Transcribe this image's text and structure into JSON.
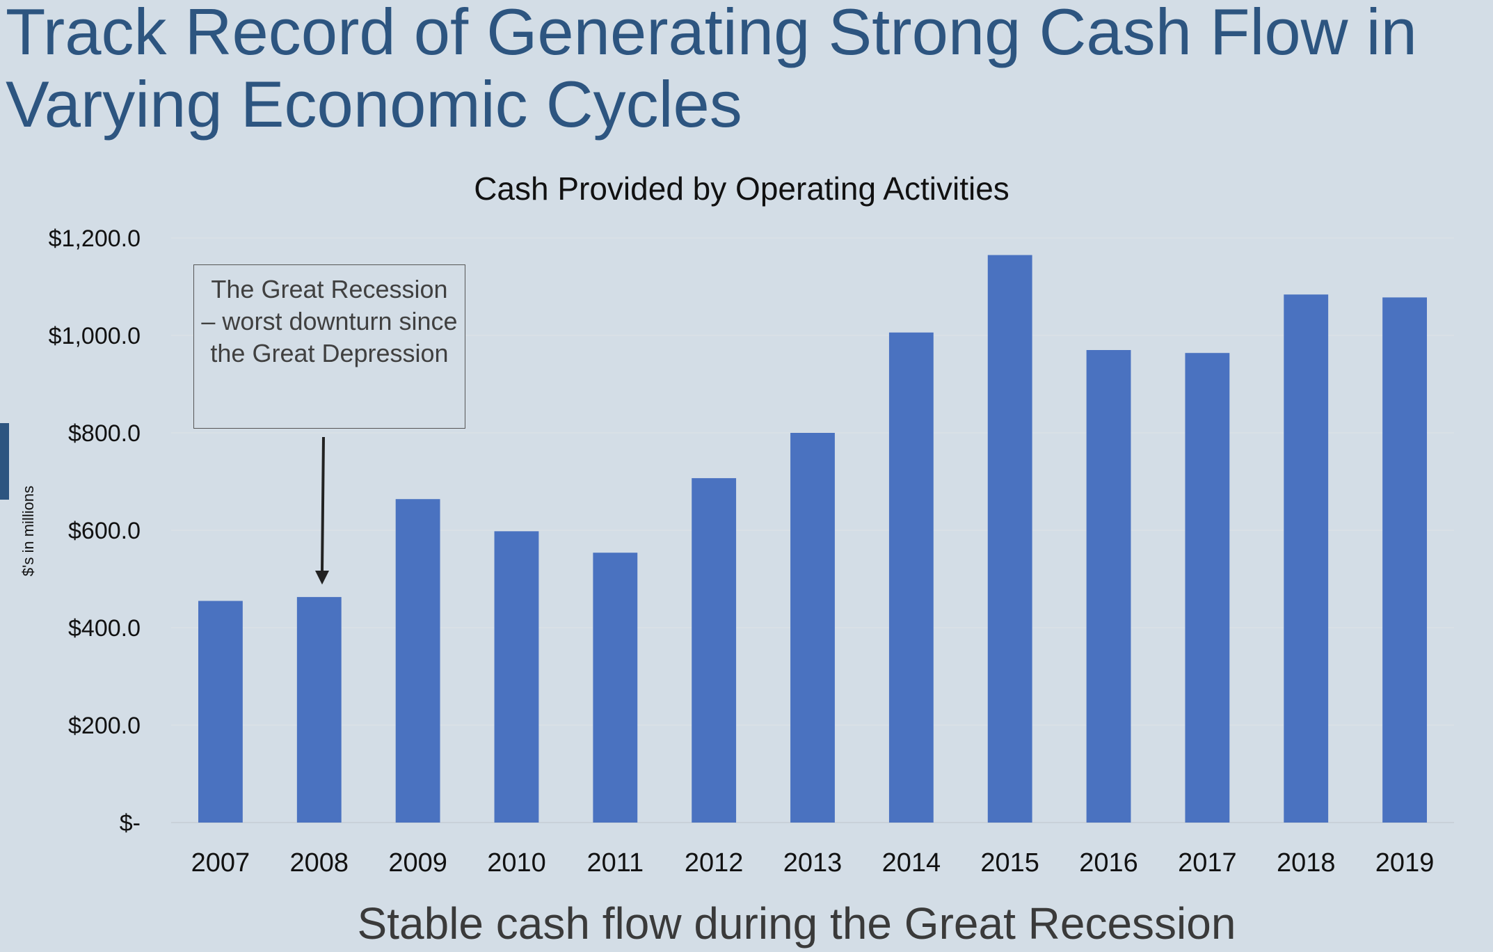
{
  "slide": {
    "title": "Track Record of Generating Strong Cash Flow in Varying Economic Cycles",
    "subtitle": "Stable cash flow during the Great Recession",
    "accent_color": "#2d5580"
  },
  "annotation": {
    "text": "The Great Recession – worst downturn since the Great Depression",
    "points_to": "2008"
  },
  "chart_data": {
    "type": "bar",
    "title": "Cash Provided by Operating Activities",
    "ylabel": "$'s in millions",
    "xlabel": "",
    "categories": [
      "2007",
      "2008",
      "2009",
      "2010",
      "2011",
      "2012",
      "2013",
      "2014",
      "2015",
      "2016",
      "2017",
      "2018",
      "2019"
    ],
    "values": [
      455,
      463,
      664,
      598,
      554,
      707,
      800,
      1006,
      1165,
      970,
      964,
      1084,
      1078
    ],
    "ylim": [
      0,
      1200
    ],
    "yticks": [
      0,
      200,
      400,
      600,
      800,
      1000,
      1200
    ],
    "ytick_labels": [
      "$-",
      "$200.0",
      "$400.0",
      "$600.0",
      "$800.0",
      "$1,000.0",
      "$1,200.0"
    ],
    "bar_color": "#4a72c0",
    "grid": true,
    "legend": "none"
  }
}
